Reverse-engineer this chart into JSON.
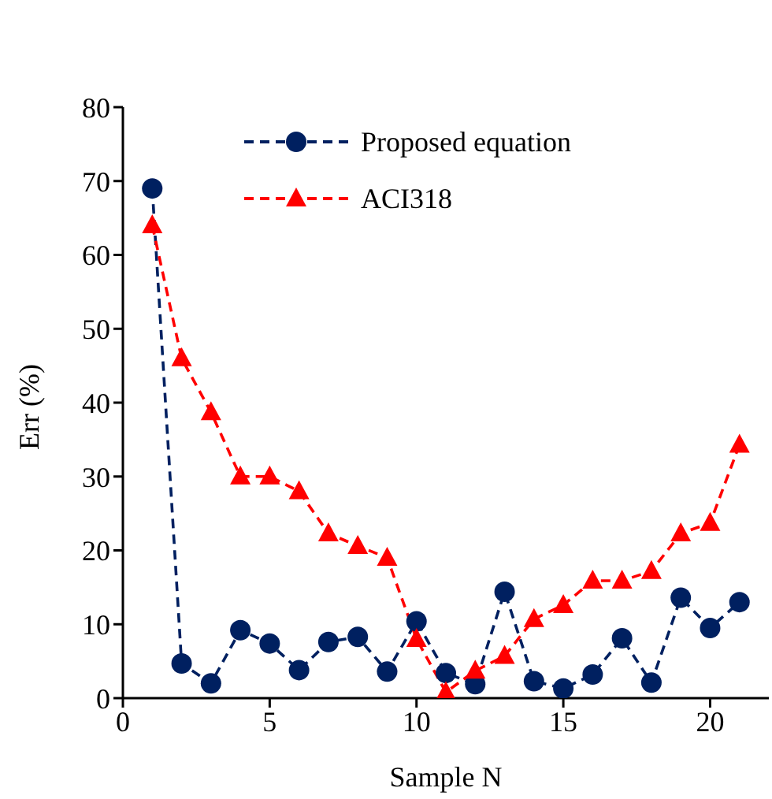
{
  "chart_data": {
    "type": "line",
    "xlabel": "Sample N",
    "ylabel": "Err (%)",
    "x": [
      1,
      2,
      3,
      4,
      5,
      6,
      7,
      8,
      9,
      10,
      11,
      12,
      13,
      14,
      15,
      16,
      17,
      18,
      19,
      20,
      21
    ],
    "series": [
      {
        "name": "Proposed equation",
        "color": "#002060",
        "marker": "circle",
        "values": [
          69,
          4.7,
          2,
          9.2,
          7.4,
          3.8,
          7.6,
          8.3,
          3.6,
          10.4,
          3.4,
          1.9,
          14.4,
          2.3,
          1.3,
          3.2,
          8.1,
          2.1,
          13.6,
          9.5,
          13.0
        ]
      },
      {
        "name": "ACI318",
        "color": "#ff0000",
        "marker": "triangle",
        "values": [
          64,
          46,
          38.7,
          30,
          30,
          28,
          22.3,
          20.6,
          19,
          8,
          0.8,
          3.7,
          5.7,
          10.7,
          12.6,
          15.9,
          15.9,
          17.2,
          22.3,
          23.7,
          34.3
        ]
      }
    ],
    "xlim": [
      0,
      22
    ],
    "xticks": [
      0,
      5,
      10,
      15,
      20
    ],
    "ylim": [
      0,
      80
    ],
    "yticks": [
      0,
      10,
      20,
      30,
      40,
      50,
      60,
      70,
      80
    ],
    "grid": false,
    "legend": "top",
    "line_style": "dashed"
  }
}
